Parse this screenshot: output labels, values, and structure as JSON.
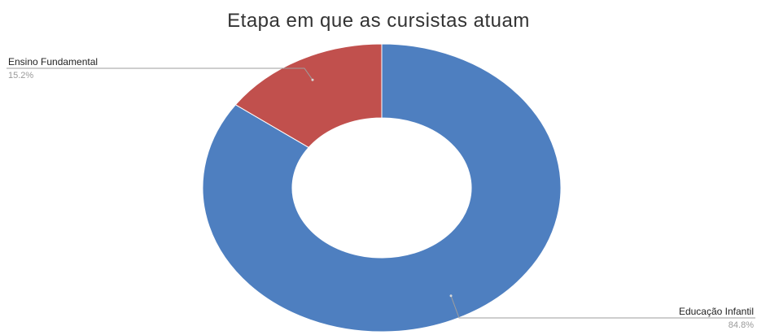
{
  "chart_data": {
    "type": "pie",
    "title": "Etapa em que as cursistas atuam",
    "donut": true,
    "start_angle_deg": 0,
    "direction": "clockwise",
    "slices": [
      {
        "label": "Educação Infantil",
        "value": 84.8,
        "value_label": "84.8%",
        "color": "#4e7fc0"
      },
      {
        "label": "Ensino Fundamental",
        "value": 15.2,
        "value_label": "15.2%",
        "color": "#c1504d"
      }
    ],
    "legend": "none"
  }
}
